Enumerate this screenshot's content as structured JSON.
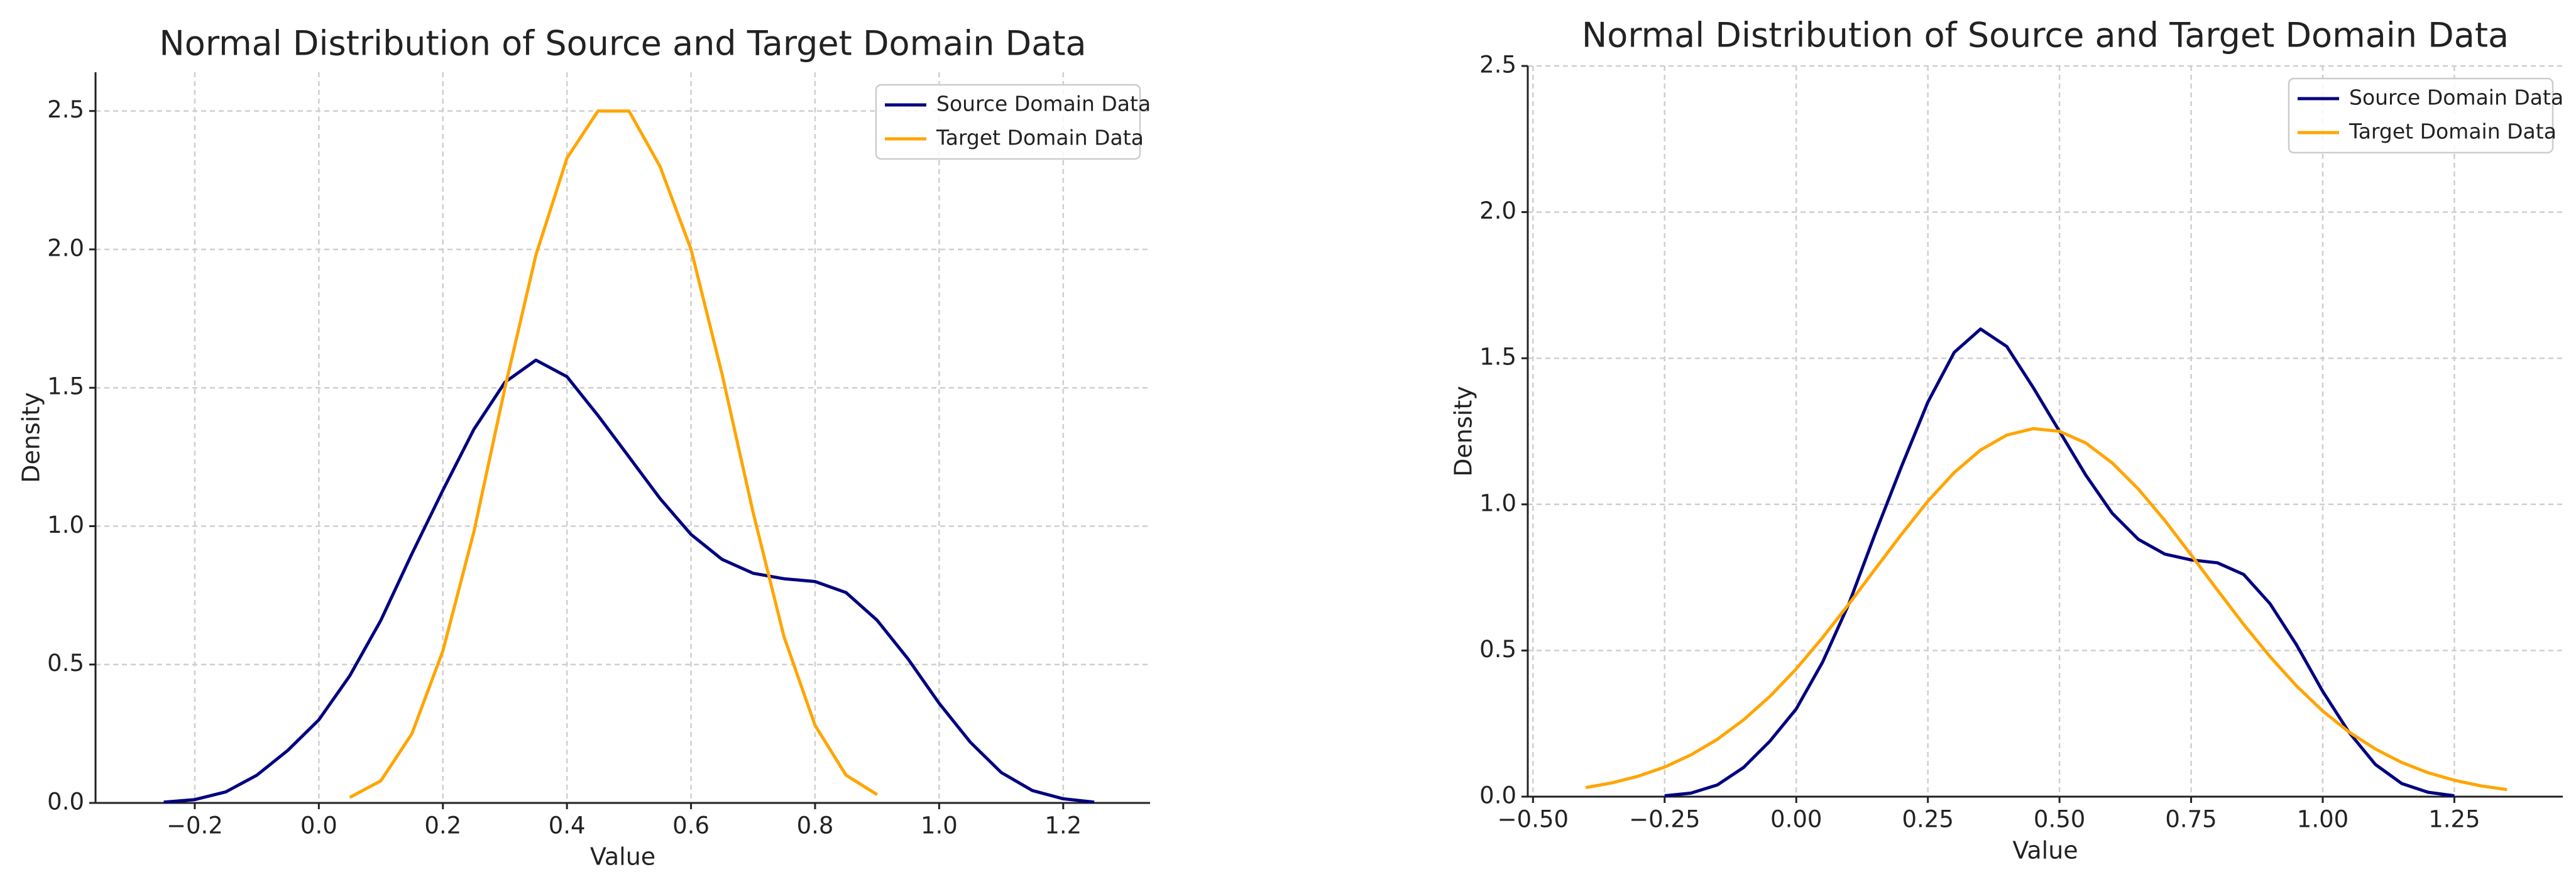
{
  "chart_data": [
    {
      "type": "line",
      "title": "Normal Distribution of Source and Target Domain Data",
      "x_label": "Value",
      "y_label": "Density",
      "x": [
        -0.25,
        -0.2,
        -0.15,
        -0.1,
        -0.05,
        0,
        0.05,
        0.1,
        0.15,
        0.2,
        0.25,
        0.3,
        0.35,
        0.4,
        0.45,
        0.5,
        0.55,
        0.6,
        0.65,
        0.7,
        0.75,
        0.8,
        0.85,
        0.9,
        0.95,
        1.0,
        1.05,
        1.1,
        1.15,
        1.2,
        1.25
      ],
      "series": [
        {
          "name": "Source Domain Data",
          "color": "#000080",
          "values": [
            0.003,
            0.012,
            0.04,
            0.1,
            0.19,
            0.3,
            0.46,
            0.66,
            0.9,
            1.13,
            1.35,
            1.52,
            1.6,
            1.54,
            1.4,
            1.25,
            1.1,
            0.97,
            0.88,
            0.83,
            0.81,
            0.8,
            0.76,
            0.66,
            0.52,
            0.36,
            0.22,
            0.11,
            0.045,
            0.015,
            0.003
          ]
        },
        {
          "name": "Target Domain Data",
          "color": "#ffa500",
          "values": [
            null,
            null,
            null,
            null,
            null,
            null,
            0.02,
            0.08,
            0.25,
            0.55,
            0.98,
            1.5,
            1.98,
            2.33,
            2.5,
            2.5,
            2.3,
            2.0,
            1.55,
            1.05,
            0.6,
            0.28,
            0.1,
            0.03,
            null,
            null,
            null,
            null,
            null,
            null,
            null
          ]
        }
      ],
      "xlim": [
        -0.36,
        1.34
      ],
      "ylim": [
        0,
        2.64
      ],
      "xticks": [
        {
          "value": -0.2,
          "label": "−0.2"
        },
        {
          "value": 0,
          "label": "0.0"
        },
        0.2,
        0.4,
        0.6,
        0.8,
        {
          "value": 1,
          "label": "1.0"
        },
        1.2
      ],
      "yticks": [
        {
          "value": 0,
          "label": "0.0"
        },
        0.5,
        {
          "value": 1,
          "label": "1.0"
        },
        1.5,
        {
          "value": 2,
          "label": "2.0"
        },
        2.5
      ],
      "grid": true,
      "legend": "upper right"
    },
    {
      "type": "line",
      "title": "Normal Distribution of Source and Target Domain Data",
      "x_label": "Value",
      "y_label": "Density",
      "x": [
        -0.4,
        -0.35,
        -0.3,
        -0.25,
        -0.2,
        -0.15,
        -0.1,
        -0.05,
        0,
        0.05,
        0.1,
        0.15,
        0.2,
        0.25,
        0.3,
        0.35,
        0.4,
        0.45,
        0.5,
        0.55,
        0.6,
        0.65,
        0.7,
        0.75,
        0.8,
        0.85,
        0.9,
        0.95,
        1.0,
        1.05,
        1.1,
        1.15,
        1.2,
        1.25,
        1.3,
        1.35
      ],
      "series": [
        {
          "name": "Source Domain Data",
          "color": "#000080",
          "values": [
            null,
            null,
            null,
            0.003,
            0.012,
            0.04,
            0.1,
            0.19,
            0.3,
            0.46,
            0.66,
            0.9,
            1.13,
            1.35,
            1.52,
            1.6,
            1.54,
            1.4,
            1.25,
            1.1,
            0.97,
            0.88,
            0.83,
            0.81,
            0.8,
            0.76,
            0.66,
            0.52,
            0.36,
            0.22,
            0.11,
            0.045,
            0.015,
            0.003,
            null,
            null
          ]
        },
        {
          "name": "Target Domain Data",
          "color": "#ffa500",
          "values": [
            0.031,
            0.047,
            0.07,
            0.101,
            0.143,
            0.196,
            0.263,
            0.343,
            0.437,
            0.544,
            0.659,
            0.779,
            0.898,
            1.011,
            1.109,
            1.186,
            1.237,
            1.259,
            1.25,
            1.21,
            1.142,
            1.052,
            0.945,
            0.827,
            0.707,
            0.589,
            0.479,
            0.379,
            0.293,
            0.221,
            0.163,
            0.117,
            0.082,
            0.056,
            0.037,
            0.024
          ]
        }
      ],
      "xlim": [
        -0.51,
        1.456
      ],
      "ylim": [
        0,
        2.5
      ],
      "xticks": [
        {
          "value": -0.5,
          "label": "−0.50"
        },
        {
          "value": -0.25,
          "label": "−0.25"
        },
        {
          "value": 0,
          "label": "0.00"
        },
        {
          "value": 0.25,
          "label": "0.25"
        },
        {
          "value": 0.5,
          "label": "0.50"
        },
        {
          "value": 0.75,
          "label": "0.75"
        },
        {
          "value": 1,
          "label": "1.00"
        },
        {
          "value": 1.25,
          "label": "1.25"
        }
      ],
      "yticks": [
        {
          "value": 0,
          "label": "0.0"
        },
        0.5,
        {
          "value": 1,
          "label": "1.0"
        },
        1.5,
        {
          "value": 2,
          "label": "2.0"
        },
        2.5
      ],
      "grid": true,
      "legend": "upper right"
    }
  ]
}
